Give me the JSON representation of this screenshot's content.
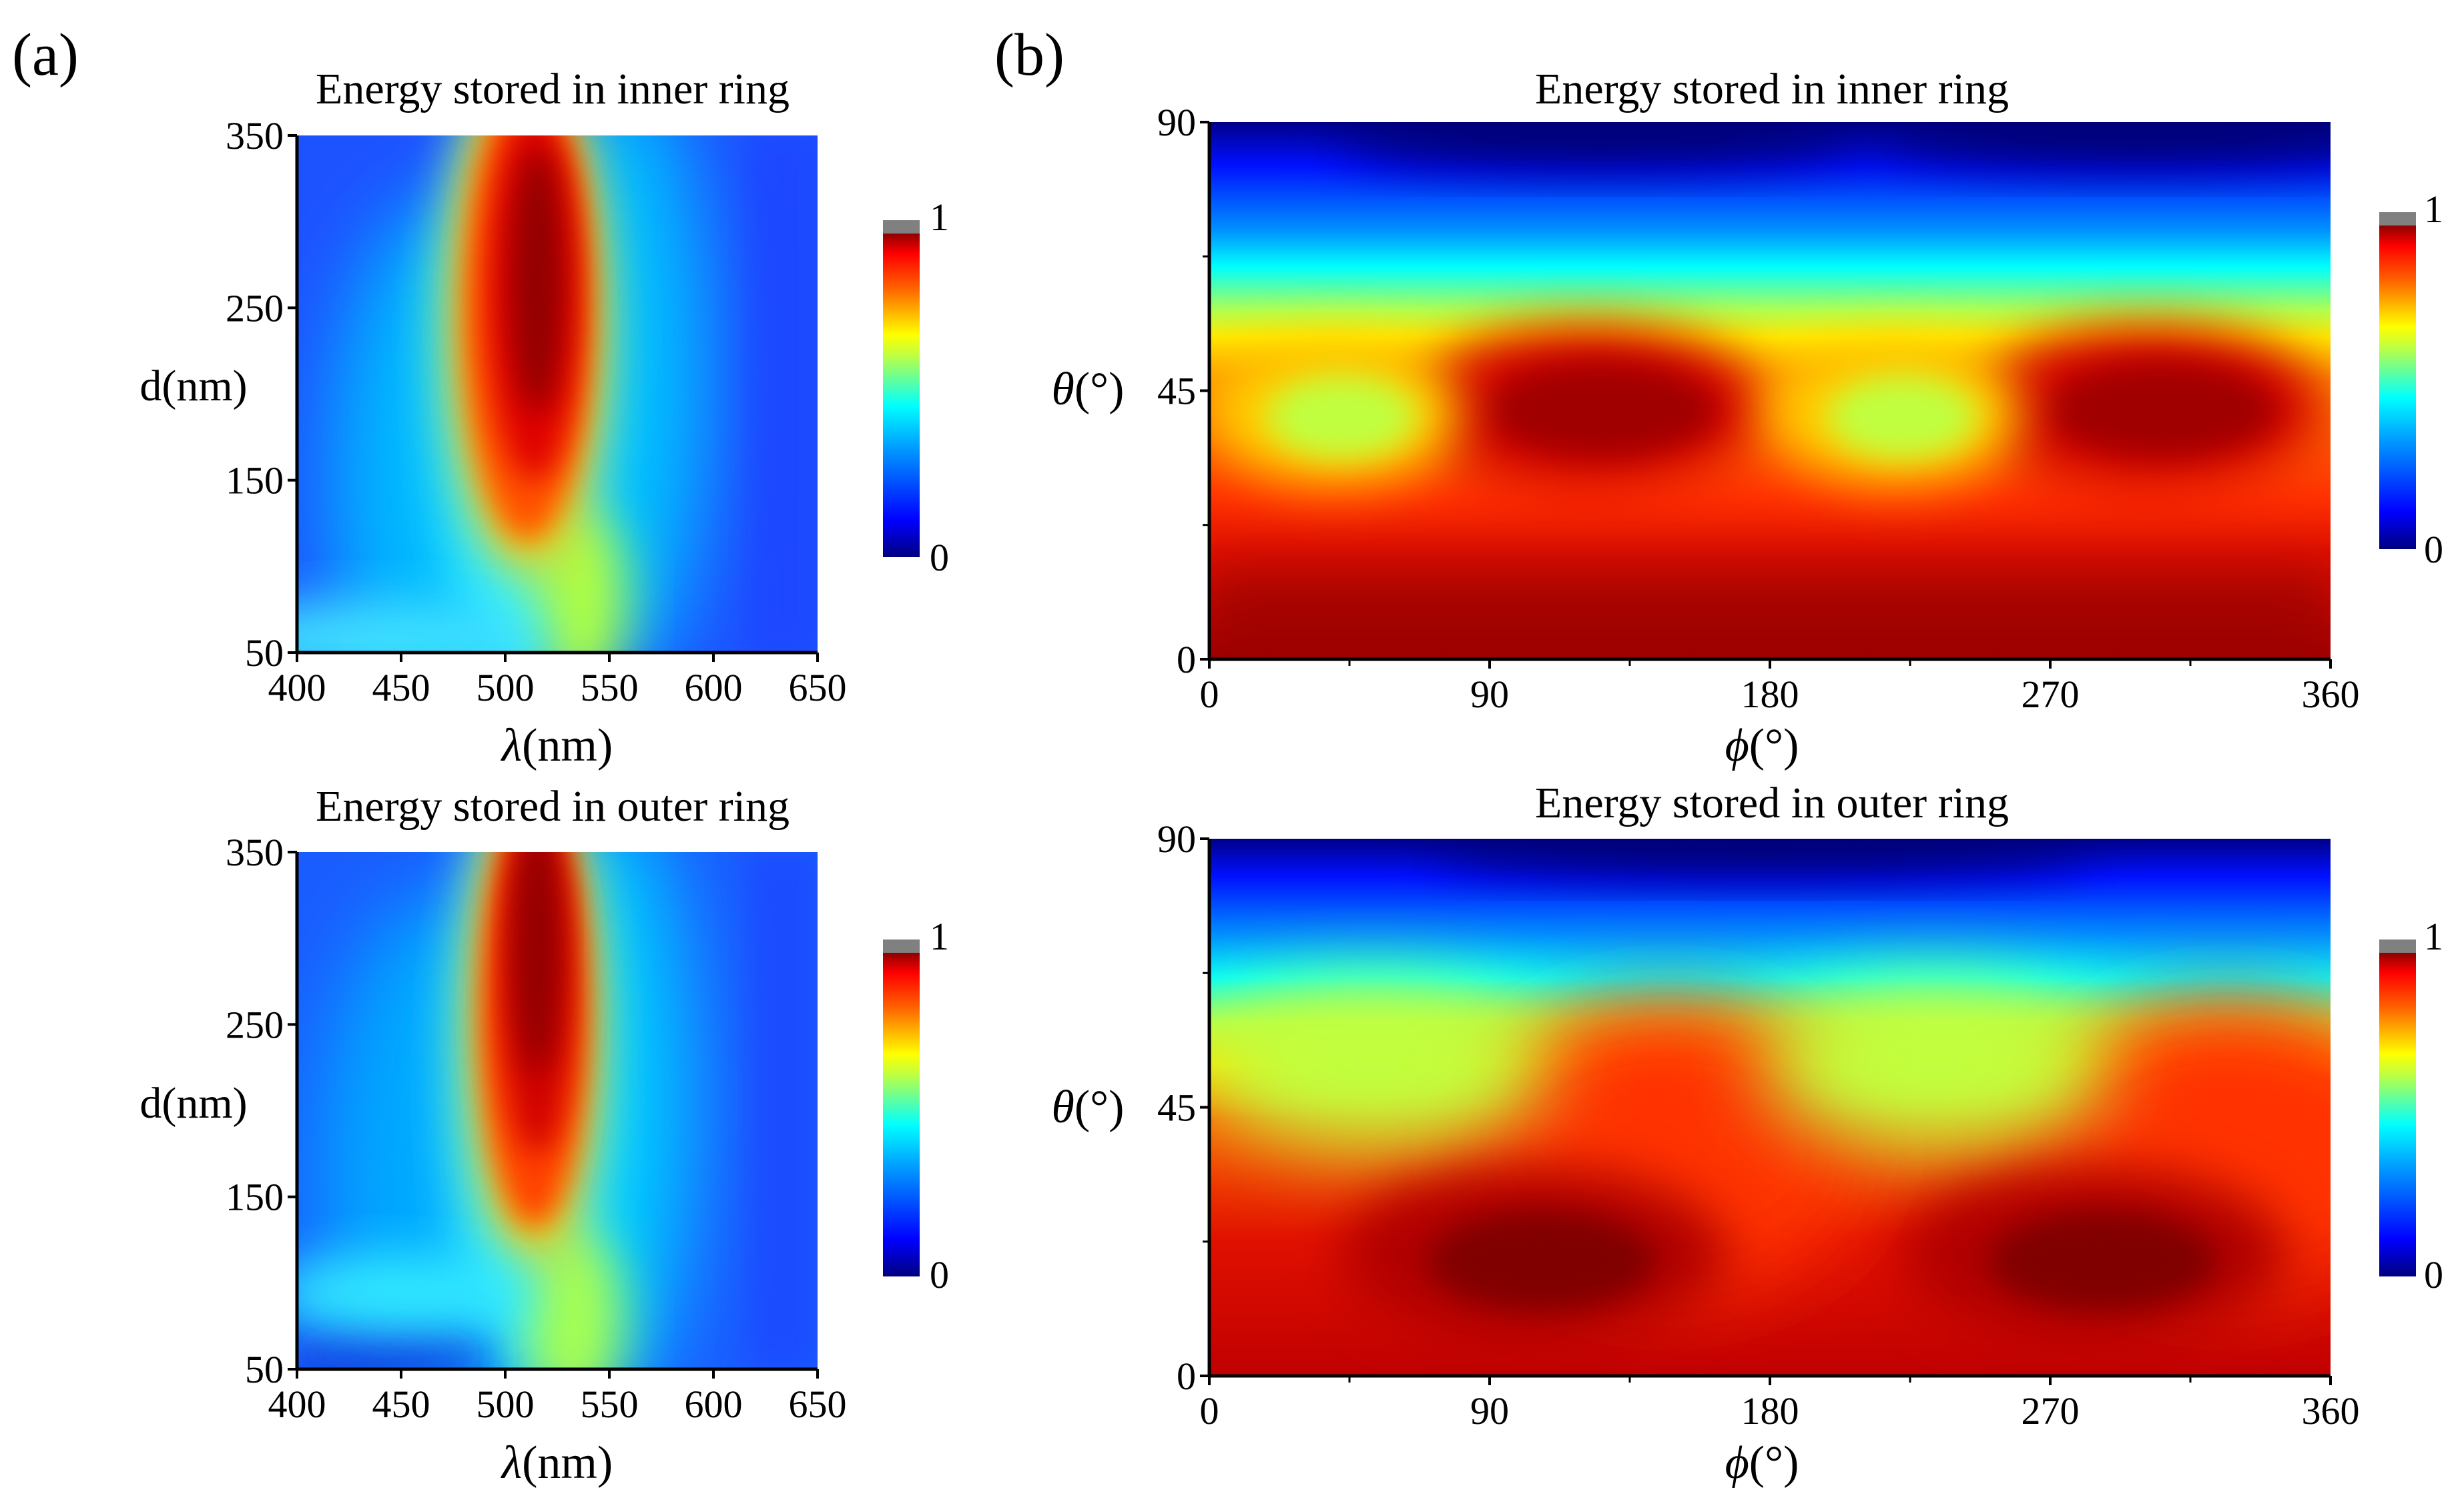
{
  "figure": {
    "panel_labels": [
      "(a)",
      "(b)"
    ],
    "colorbar_ticks": [
      "0",
      "1"
    ],
    "colorscale": [
      "#000080",
      "#0000ff",
      "#0080ff",
      "#00ffff",
      "#80ff80",
      "#ffff00",
      "#ff8000",
      "#ff0000",
      "#800000"
    ]
  },
  "chart_data": [
    {
      "id": "a-top",
      "type": "heatmap",
      "title": "Energy stored in inner ring",
      "xlabel_symbol": "λ",
      "xlabel_unit": "(nm)",
      "ylabel": "d(nm)",
      "xlim": [
        400,
        650
      ],
      "ylim": [
        50,
        350
      ],
      "xticks": [
        "400",
        "450",
        "500",
        "550",
        "600",
        "650"
      ],
      "yticks": [
        "50",
        "150",
        "250",
        "350"
      ],
      "zlim": [
        0,
        1
      ],
      "features": [
        {
          "kind": "peak",
          "x": 510,
          "y": 240,
          "value": 0.97
        },
        {
          "kind": "secondary",
          "x": 545,
          "y": 50,
          "value": 0.55
        }
      ]
    },
    {
      "id": "a-bottom",
      "type": "heatmap",
      "title": "Energy stored in outer ring",
      "xlabel_symbol": "λ",
      "xlabel_unit": "(nm)",
      "ylabel": "d(nm)",
      "xlim": [
        400,
        650
      ],
      "ylim": [
        50,
        350
      ],
      "xticks": [
        "400",
        "450",
        "500",
        "550",
        "600",
        "650"
      ],
      "yticks": [
        "50",
        "150",
        "250",
        "350"
      ],
      "zlim": [
        0,
        1
      ],
      "features": [
        {
          "kind": "peak",
          "x": 515,
          "y": 280,
          "value": 0.97
        },
        {
          "kind": "secondary",
          "x": 540,
          "y": 50,
          "value": 0.55
        }
      ]
    },
    {
      "id": "b-top",
      "type": "heatmap",
      "title": "Energy stored in inner ring",
      "xlabel_symbol": "ϕ",
      "xlabel_unit": "(°)",
      "ylabel_symbol": "θ",
      "ylabel_unit": "(°)",
      "xlim": [
        0,
        360
      ],
      "ylim": [
        0,
        90
      ],
      "xticks": [
        "0",
        "90",
        "180",
        "270",
        "360"
      ],
      "yticks": [
        "0",
        "45",
        "90"
      ],
      "zlim": [
        0,
        1
      ],
      "features": [
        {
          "kind": "max",
          "x": 135,
          "y": 40,
          "value": 0.95
        },
        {
          "kind": "max",
          "x": 315,
          "y": 40,
          "value": 0.95
        },
        {
          "kind": "min",
          "x": 45,
          "y": 40,
          "value": 0.55
        },
        {
          "kind": "min",
          "x": 225,
          "y": 40,
          "value": 0.55
        }
      ]
    },
    {
      "id": "b-bottom",
      "type": "heatmap",
      "title": "Energy stored in outer ring",
      "xlabel_symbol": "ϕ",
      "xlabel_unit": "(°)",
      "ylabel_symbol": "θ",
      "ylabel_unit": "(°)",
      "xlim": [
        0,
        360
      ],
      "ylim": [
        0,
        90
      ],
      "xticks": [
        "0",
        "90",
        "180",
        "270",
        "360"
      ],
      "yticks": [
        "0",
        "45",
        "90"
      ],
      "zlim": [
        0,
        1
      ],
      "features": [
        {
          "kind": "max",
          "x": 105,
          "y": 18,
          "value": 0.97
        },
        {
          "kind": "max",
          "x": 285,
          "y": 18,
          "value": 0.97
        }
      ]
    }
  ]
}
